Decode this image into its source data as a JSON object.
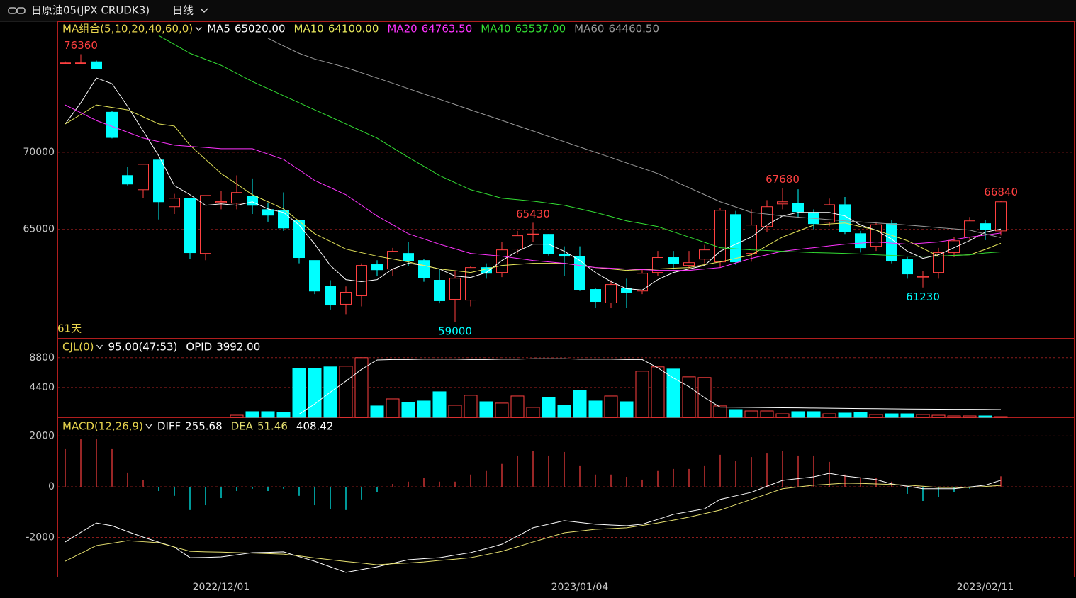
{
  "header": {
    "title": "日原油05(JPX CRUDK3)",
    "period": "日线"
  },
  "chart_data": [
    {
      "type": "candlestick",
      "title": "MA组合(5,10,20,40,60,0)",
      "footnote": "61天",
      "categories": [
        null,
        null,
        null,
        null,
        null,
        null,
        null,
        null,
        null,
        null,
        "2022/12/01",
        null,
        null,
        null,
        null,
        null,
        null,
        null,
        null,
        null,
        null,
        null,
        null,
        null,
        null,
        null,
        null,
        null,
        null,
        null,
        null,
        null,
        null,
        "2023/01/04",
        null,
        null,
        null,
        null,
        null,
        null,
        null,
        null,
        null,
        null,
        null,
        null,
        null,
        null,
        null,
        null,
        null,
        null,
        null,
        null,
        null,
        null,
        null,
        null,
        null,
        "2023/02/11",
        null
      ],
      "open": [
        75800,
        75800,
        75870,
        72600,
        68490,
        67570,
        69500,
        66470,
        67020,
        63440,
        66740,
        66700,
        67160,
        66280,
        66240,
        65600,
        62980,
        61330,
        60140,
        60690,
        62710,
        62430,
        63440,
        62980,
        61700,
        60460,
        60410,
        62520,
        62200,
        63720,
        64680,
        64680,
        63400,
        63260,
        61100,
        60230,
        61190,
        61000,
        62200,
        63170,
        62660,
        63070,
        62890,
        65960,
        63440,
        65180,
        66650,
        66700,
        66100,
        65460,
        66600,
        64720,
        63900,
        65370,
        63030,
        61900,
        62200,
        63490,
        64500,
        65370,
        64900
      ],
      "high": [
        75900,
        76360,
        75950,
        72700,
        69040,
        69220,
        69500,
        67300,
        67020,
        67200,
        67500,
        68500,
        68300,
        66700,
        67400,
        65600,
        62980,
        61700,
        61300,
        62800,
        63000,
        63800,
        64200,
        63100,
        62400,
        62300,
        62600,
        62800,
        64200,
        64900,
        65430,
        64700,
        63900,
        63900,
        61200,
        61700,
        61800,
        62400,
        63600,
        63600,
        63600,
        64000,
        66400,
        66200,
        66300,
        66900,
        67680,
        67600,
        66300,
        67000,
        67100,
        64900,
        65500,
        65600,
        63200,
        62300,
        63800,
        64500,
        65800,
        65600,
        66840
      ],
      "low": [
        75700,
        75700,
        75400,
        70900,
        67850,
        67020,
        65640,
        66000,
        63060,
        63000,
        66300,
        66300,
        66000,
        65500,
        64900,
        62800,
        60800,
        59800,
        59500,
        60000,
        62000,
        62000,
        62600,
        61600,
        60200,
        59000,
        60000,
        61800,
        61900,
        63400,
        64200,
        63300,
        62000,
        61000,
        59900,
        59900,
        59900,
        60800,
        62000,
        62400,
        62400,
        62800,
        62500,
        62700,
        62900,
        64800,
        66300,
        65800,
        65000,
        65200,
        64700,
        63500,
        63600,
        62800,
        61800,
        61230,
        61800,
        63200,
        64300,
        64300,
        64600
      ],
      "close": [
        75800,
        75800,
        75410,
        70960,
        67940,
        69220,
        66790,
        67020,
        63490,
        67200,
        66800,
        67390,
        66560,
        65920,
        65090,
        63170,
        61000,
        60090,
        60920,
        62660,
        62380,
        63580,
        62940,
        61880,
        60370,
        61830,
        62520,
        62150,
        63670,
        64590,
        64700,
        63440,
        63260,
        61100,
        60320,
        61420,
        60920,
        62150,
        63170,
        62800,
        62840,
        63670,
        66240,
        62890,
        65280,
        66470,
        66790,
        66150,
        65370,
        66600,
        64860,
        63810,
        65300,
        62940,
        62110,
        61950,
        63490,
        64260,
        65550,
        65000,
        66790
      ],
      "up_color": "#ff4040",
      "down_color": "#00ffff",
      "ylim": [
        58000,
        78500
      ],
      "yticks": [
        65000,
        70000
      ],
      "grid": true,
      "series": [
        {
          "name": "MA5",
          "color": "#ffffff",
          "value_label": "65020.00",
          "values": [
            71840,
            73210,
            74820,
            74450,
            72980,
            71380,
            69770,
            67840,
            67250,
            66560,
            66650,
            66560,
            66790,
            66330,
            66100,
            65280,
            64040,
            62660,
            61740,
            61610,
            61740,
            62430,
            62800,
            62660,
            62430,
            61970,
            61880,
            62200,
            62980,
            63580,
            64040,
            64040,
            63580,
            62980,
            62200,
            61610,
            61150,
            61060,
            61740,
            62200,
            62430,
            62660,
            63580,
            64040,
            64500,
            65280,
            65870,
            66100,
            66100,
            66100,
            65870,
            65280,
            64950,
            64360,
            63580,
            63120,
            63350,
            63810,
            64270,
            64820,
            65020
          ]
        },
        {
          "name": "MA10",
          "color": "#e6e65a",
          "value_label": "64100.00",
          "values": [
            71840,
            72450,
            73070,
            72910,
            72750,
            72300,
            71840,
            71700,
            70460,
            69540,
            68620,
            67940,
            67250,
            66790,
            66330,
            65530,
            64720,
            64220,
            63720,
            63490,
            63260,
            63080,
            62890,
            62660,
            62430,
            62320,
            62200,
            62430,
            62660,
            62730,
            62800,
            62800,
            62800,
            62660,
            62520,
            62430,
            62340,
            62390,
            62430,
            62480,
            62520,
            62710,
            62890,
            63120,
            63350,
            63930,
            64500,
            64890,
            65280,
            65350,
            65410,
            65180,
            64950,
            64610,
            64270,
            63770,
            63260,
            63310,
            63350,
            63700,
            64100
          ]
        },
        {
          "name": "MA20",
          "color": "#ff33ff",
          "value_label": "64763.50",
          "values": [
            73070,
            72570,
            72060,
            71680,
            71300,
            70920,
            70690,
            70460,
            70380,
            70310,
            70230,
            70230,
            70230,
            69890,
            69540,
            68860,
            68170,
            67710,
            67250,
            66560,
            65870,
            65300,
            64720,
            64380,
            64040,
            63740,
            63440,
            63350,
            63260,
            63120,
            62980,
            62890,
            62800,
            62660,
            62520,
            62480,
            62430,
            62390,
            62340,
            62340,
            62340,
            62430,
            62520,
            62820,
            63120,
            63350,
            63580,
            63700,
            63810,
            63930,
            64040,
            64110,
            64180,
            64110,
            64040,
            64110,
            64180,
            64340,
            64500,
            64630,
            64763.5
          ]
        },
        {
          "name": "MA40",
          "color": "#33dd33",
          "value_label": "63537.00",
          "values": [
            null,
            null,
            null,
            null,
            null,
            null,
            77570,
            77000,
            76420,
            76030,
            75640,
            75120,
            74590,
            74130,
            73670,
            73210,
            72750,
            72300,
            71840,
            71380,
            70920,
            70300,
            69680,
            69090,
            68490,
            68030,
            67570,
            67300,
            67020,
            66930,
            66830,
            66700,
            66560,
            66330,
            66100,
            65830,
            65550,
            65370,
            65180,
            64840,
            64500,
            64160,
            63810,
            63740,
            63670,
            63630,
            63580,
            63540,
            63490,
            63470,
            63440,
            63400,
            63350,
            63310,
            63260,
            63260,
            63260,
            63310,
            63350,
            63470,
            63537
          ]
        },
        {
          "name": "MA60",
          "color": "#9a9a9a",
          "value_label": "64460.50",
          "values": [
            null,
            null,
            null,
            null,
            null,
            null,
            null,
            null,
            null,
            null,
            null,
            null,
            null,
            77400,
            76900,
            76420,
            76050,
            75780,
            75500,
            75160,
            74820,
            74480,
            74130,
            73790,
            73440,
            73100,
            72750,
            72410,
            72070,
            71720,
            71380,
            71030,
            70690,
            70340,
            70000,
            69660,
            69310,
            68970,
            68620,
            68160,
            67700,
            67250,
            66790,
            66450,
            66100,
            65990,
            65870,
            65790,
            65710,
            65630,
            65550,
            65480,
            65420,
            65350,
            65280,
            65200,
            65110,
            65030,
            64950,
            64700,
            64460.5
          ]
        }
      ]
    },
    {
      "type": "bar",
      "title": "CJL(0)",
      "subtitle": "95.00(47:53)",
      "values": [
        0,
        0,
        0,
        0,
        0,
        0,
        0,
        0,
        0,
        0,
        0,
        310,
        840,
        840,
        730,
        7230,
        7230,
        7440,
        7540,
        8800,
        1680,
        2720,
        2200,
        2410,
        3770,
        1780,
        3250,
        2300,
        2100,
        3140,
        1470,
        2930,
        1780,
        3980,
        2410,
        3140,
        2300,
        6810,
        7440,
        7120,
        5970,
        5870,
        1680,
        1150,
        940,
        940,
        520,
        840,
        840,
        520,
        630,
        730,
        420,
        520,
        520,
        420,
        310,
        210,
        210,
        210,
        100
      ],
      "ylim": [
        0,
        11600
      ],
      "yticks": [
        4400,
        8800
      ],
      "grid": true,
      "y2lim": [
        3000,
        13000
      ],
      "series": [
        {
          "name": "OPID",
          "color": "#ffffff",
          "value_label": "3992.00",
          "axis": "y2",
          "values": [
            null,
            null,
            null,
            null,
            null,
            null,
            null,
            null,
            null,
            null,
            null,
            null,
            null,
            null,
            null,
            3400,
            4700,
            6200,
            7600,
            9100,
            10300,
            10350,
            10350,
            10400,
            10400,
            10400,
            10350,
            10350,
            10400,
            10400,
            10450,
            10450,
            10450,
            10400,
            10400,
            10400,
            10350,
            10350,
            9300,
            8000,
            6900,
            5500,
            4300,
            4280,
            4260,
            4240,
            4220,
            4200,
            4180,
            4160,
            4140,
            4120,
            4100,
            4080,
            4060,
            4050,
            4040,
            4030,
            4020,
            4010,
            3992
          ]
        }
      ]
    },
    {
      "type": "macd",
      "title": "MACD(12,26,9)",
      "value_label": "408.42",
      "up_color": "#ff4040",
      "down_color": "#00ffff",
      "values": [
        1510,
        1870,
        1870,
        1510,
        560,
        250,
        -170,
        -360,
        -920,
        -730,
        -450,
        -170,
        -80,
        -170,
        -80,
        -360,
        -730,
        -870,
        -920,
        -500,
        -220,
        110,
        200,
        340,
        200,
        200,
        480,
        620,
        900,
        1230,
        1400,
        1230,
        1370,
        840,
        480,
        480,
        390,
        280,
        620,
        700,
        700,
        840,
        1260,
        1030,
        1170,
        1310,
        1400,
        1230,
        1230,
        980,
        480,
        340,
        340,
        200,
        -280,
        -560,
        -420,
        -220,
        -80,
        0,
        408.42
      ],
      "ylim": [
        -3580,
        2710
      ],
      "yticks": [
        -2000,
        0,
        2000
      ],
      "grid": true,
      "series": [
        {
          "name": "DIFF",
          "color": "#ffffff",
          "value_label": "255.68",
          "values": [
            -2180,
            -1800,
            -1430,
            -1540,
            -1770,
            -1990,
            -2190,
            -2380,
            -2800,
            -2790,
            -2770,
            -2690,
            -2600,
            -2590,
            -2570,
            -2760,
            -2940,
            -3160,
            -3380,
            -3270,
            -3160,
            -3020,
            -2880,
            -2840,
            -2800,
            -2700,
            -2600,
            -2440,
            -2270,
            -1950,
            -1620,
            -1480,
            -1340,
            -1410,
            -1480,
            -1510,
            -1540,
            -1480,
            -1290,
            -1090,
            -980,
            -870,
            -500,
            -360,
            -220,
            20,
            250,
            320,
            390,
            530,
            420,
            350,
            280,
            110,
            20,
            -80,
            -80,
            -80,
            -10,
            60,
            255.68
          ]
        },
        {
          "name": "DEA",
          "color": "#e6e070",
          "value_label": "51.46",
          "values": [
            -2940,
            -2630,
            -2320,
            -2230,
            -2130,
            -2170,
            -2210,
            -2380,
            -2550,
            -2570,
            -2580,
            -2600,
            -2620,
            -2640,
            -2660,
            -2730,
            -2810,
            -2880,
            -2950,
            -3010,
            -3080,
            -3040,
            -3010,
            -2970,
            -2910,
            -2860,
            -2800,
            -2680,
            -2550,
            -2370,
            -2180,
            -2000,
            -1820,
            -1750,
            -1680,
            -1650,
            -1620,
            -1530,
            -1430,
            -1320,
            -1200,
            -1060,
            -920,
            -710,
            -500,
            -290,
            -80,
            -10,
            60,
            100,
            140,
            130,
            110,
            90,
            60,
            20,
            -30,
            -30,
            -30,
            10,
            51.46
          ]
        }
      ]
    }
  ]
}
